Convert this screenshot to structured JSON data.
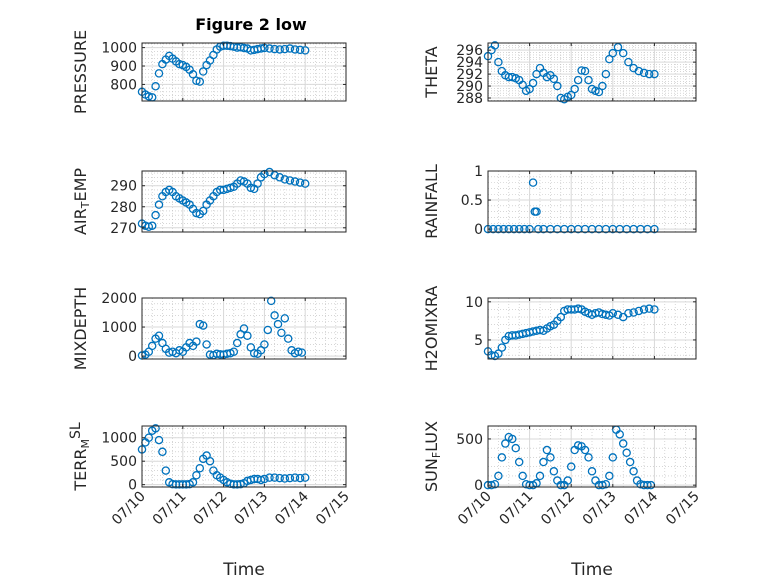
{
  "figure": {
    "title": "Figure 2 low",
    "marker_color": "#0072BD",
    "grid_color": "#d9d9d9",
    "minor_grid_color": "#bdbdbd",
    "axis_color": "#262626"
  },
  "chart_data": [
    {
      "type": "scatter",
      "title": "Figure 2 low",
      "ylabel": "PRESSURE",
      "ylim": [
        710,
        1025
      ],
      "yticks": [
        "800",
        "900",
        "1000"
      ],
      "ytick_values": [
        800,
        900,
        1000
      ],
      "xticks": [],
      "xlim": [
        "07/10",
        "07/14"
      ],
      "grid": true,
      "x": [
        "07/10 00:00",
        "07/10 02:00",
        "07/10 04:00",
        "07/10 06:00",
        "07/10 08:00",
        "07/10 10:00",
        "07/10 12:00",
        "07/10 14:00",
        "07/10 16:00",
        "07/10 18:00",
        "07/10 20:00",
        "07/10 22:00",
        "07/11 00:00",
        "07/11 02:00",
        "07/11 04:00",
        "07/11 06:00",
        "07/11 08:00",
        "07/11 10:00",
        "07/11 12:00",
        "07/11 14:00",
        "07/11 16:00",
        "07/11 18:00",
        "07/11 20:00",
        "07/11 22:00",
        "07/12 00:00",
        "07/12 02:00",
        "07/12 04:00",
        "07/12 06:00",
        "07/12 08:00",
        "07/12 10:00",
        "07/12 12:00",
        "07/12 14:00",
        "07/12 16:00",
        "07/12 18:00",
        "07/12 20:00",
        "07/12 22:00",
        "07/13 00:00",
        "07/13 03:00",
        "07/13 06:00",
        "07/13 09:00",
        "07/13 12:00",
        "07/13 15:00",
        "07/13 18:00",
        "07/13 21:00",
        "07/14 00:00"
      ],
      "y": [
        760,
        745,
        735,
        730,
        790,
        860,
        910,
        935,
        955,
        940,
        925,
        910,
        905,
        895,
        880,
        855,
        820,
        815,
        870,
        905,
        930,
        960,
        990,
        1005,
        1010,
        1010,
        1008,
        1005,
        1000,
        1002,
        998,
        995,
        985,
        988,
        992,
        995,
        998,
        995,
        992,
        990,
        992,
        995,
        990,
        988,
        985
      ]
    },
    {
      "type": "scatter",
      "ylabel": "THETA",
      "ylim": [
        287.5,
        297.2
      ],
      "yticks": [
        "288",
        "290",
        "292",
        "294",
        "296"
      ],
      "ytick_values": [
        288,
        290,
        292,
        294,
        296
      ],
      "xticks": [],
      "xlim": [
        "07/10",
        "07/14"
      ],
      "grid": true,
      "x": [
        "07/10 00:00",
        "07/10 02:00",
        "07/10 04:00",
        "07/10 06:00",
        "07/10 08:00",
        "07/10 10:00",
        "07/10 12:00",
        "07/10 14:00",
        "07/10 16:00",
        "07/10 18:00",
        "07/10 20:00",
        "07/10 22:00",
        "07/11 00:00",
        "07/11 02:00",
        "07/11 04:00",
        "07/11 06:00",
        "07/11 08:00",
        "07/11 10:00",
        "07/11 12:00",
        "07/11 14:00",
        "07/11 16:00",
        "07/11 18:00",
        "07/11 20:00",
        "07/11 22:00",
        "07/12 00:00",
        "07/12 02:00",
        "07/12 04:00",
        "07/12 06:00",
        "07/12 08:00",
        "07/12 10:00",
        "07/12 12:00",
        "07/12 14:00",
        "07/12 16:00",
        "07/12 18:00",
        "07/12 20:00",
        "07/12 22:00",
        "07/13 00:00",
        "07/13 03:00",
        "07/13 06:00",
        "07/13 09:00",
        "07/13 12:00",
        "07/13 15:00",
        "07/13 18:00",
        "07/13 21:00",
        "07/14 00:00"
      ],
      "y": [
        295,
        296,
        296.8,
        294,
        292.5,
        291.8,
        291.5,
        291.5,
        291.3,
        291,
        290.2,
        289.2,
        289.5,
        290.5,
        292,
        293,
        292.2,
        291.5,
        291.8,
        291.2,
        290,
        288,
        287.8,
        288.2,
        288.5,
        289.5,
        291,
        292.6,
        292.5,
        291,
        289.5,
        289.2,
        289,
        290,
        292,
        294.5,
        295.5,
        296.5,
        295.5,
        294,
        293,
        292.5,
        292.2,
        292,
        292
      ]
    },
    {
      "type": "scatter",
      "ylabel": "AIR_TEMP",
      "ylim": [
        268,
        297
      ],
      "yticks": [
        "270",
        "280",
        "290"
      ],
      "ytick_values": [
        270,
        280,
        290
      ],
      "xticks": [],
      "xlim": [
        "07/10",
        "07/14"
      ],
      "grid": true,
      "x": [
        "07/10 00:00",
        "07/10 02:00",
        "07/10 04:00",
        "07/10 06:00",
        "07/10 08:00",
        "07/10 10:00",
        "07/10 12:00",
        "07/10 14:00",
        "07/10 16:00",
        "07/10 18:00",
        "07/10 20:00",
        "07/10 22:00",
        "07/11 00:00",
        "07/11 02:00",
        "07/11 04:00",
        "07/11 06:00",
        "07/11 08:00",
        "07/11 10:00",
        "07/11 12:00",
        "07/11 14:00",
        "07/11 16:00",
        "07/11 18:00",
        "07/11 20:00",
        "07/11 22:00",
        "07/12 00:00",
        "07/12 02:00",
        "07/12 04:00",
        "07/12 06:00",
        "07/12 08:00",
        "07/12 10:00",
        "07/12 12:00",
        "07/12 14:00",
        "07/12 16:00",
        "07/12 18:00",
        "07/12 20:00",
        "07/12 22:00",
        "07/13 00:00",
        "07/13 03:00",
        "07/13 06:00",
        "07/13 09:00",
        "07/13 12:00",
        "07/13 15:00",
        "07/13 18:00",
        "07/13 21:00",
        "07/14 00:00"
      ],
      "y": [
        272,
        271,
        270.5,
        271,
        276,
        281,
        285,
        287,
        288,
        287,
        285,
        284,
        283,
        282,
        281,
        279,
        277,
        276.5,
        278,
        281,
        283,
        285,
        287,
        288,
        288,
        288.5,
        289,
        289.5,
        291,
        292.5,
        292,
        291,
        289,
        288.5,
        291,
        294,
        295.5,
        296.5,
        295,
        294,
        293,
        292.5,
        292,
        291.5,
        291
      ]
    },
    {
      "type": "scatter",
      "ylabel": "RAINFALL",
      "ylim": [
        -0.05,
        1.0
      ],
      "yticks": [
        "0",
        "0.5",
        "1"
      ],
      "ytick_values": [
        0,
        0.5,
        1
      ],
      "xticks": [],
      "xlim": [
        "07/10",
        "07/14"
      ],
      "grid": true,
      "x": [
        "07/10 00:00",
        "07/10 03:00",
        "07/10 06:00",
        "07/10 09:00",
        "07/10 12:00",
        "07/10 15:00",
        "07/10 18:00",
        "07/10 21:00",
        "07/11 00:00",
        "07/11 02:00",
        "07/11 03:00",
        "07/11 04:00",
        "07/11 05:00",
        "07/11 08:00",
        "07/11 12:00",
        "07/11 16:00",
        "07/11 20:00",
        "07/12 00:00",
        "07/12 04:00",
        "07/12 08:00",
        "07/12 12:00",
        "07/12 16:00",
        "07/12 20:00",
        "07/13 00:00",
        "07/13 04:00",
        "07/13 08:00",
        "07/13 12:00",
        "07/13 16:00",
        "07/13 20:00",
        "07/14 00:00"
      ],
      "y": [
        0,
        0,
        0,
        0,
        0,
        0,
        0,
        0,
        0,
        0.8,
        0.3,
        0.3,
        0,
        0,
        0,
        0,
        0,
        0,
        0,
        0,
        0,
        0,
        0,
        0,
        0,
        0,
        0,
        0,
        0,
        0
      ]
    },
    {
      "type": "scatter",
      "ylabel": "MIXDEPTH",
      "ylim": [
        -100,
        2000
      ],
      "yticks": [
        "0",
        "1000",
        "2000"
      ],
      "ytick_values": [
        0,
        1000,
        2000
      ],
      "xticks": [],
      "xlim": [
        "07/10",
        "07/14"
      ],
      "grid": true,
      "x": [
        "07/10 00:00",
        "07/10 02:00",
        "07/10 04:00",
        "07/10 06:00",
        "07/10 08:00",
        "07/10 10:00",
        "07/10 12:00",
        "07/10 14:00",
        "07/10 16:00",
        "07/10 18:00",
        "07/10 20:00",
        "07/10 22:00",
        "07/11 00:00",
        "07/11 02:00",
        "07/11 04:00",
        "07/11 06:00",
        "07/11 08:00",
        "07/11 10:00",
        "07/11 12:00",
        "07/11 14:00",
        "07/11 16:00",
        "07/11 18:00",
        "07/11 20:00",
        "07/11 22:00",
        "07/12 00:00",
        "07/12 02:00",
        "07/12 04:00",
        "07/12 06:00",
        "07/12 08:00",
        "07/12 10:00",
        "07/12 12:00",
        "07/12 14:00",
        "07/12 16:00",
        "07/12 18:00",
        "07/12 20:00",
        "07/12 22:00",
        "07/13 00:00",
        "07/13 02:00",
        "07/13 04:00",
        "07/13 06:00",
        "07/13 08:00",
        "07/13 10:00",
        "07/13 12:00",
        "07/13 14:00",
        "07/13 16:00",
        "07/13 18:00",
        "07/13 20:00",
        "07/13 22:00"
      ],
      "y": [
        20,
        50,
        150,
        350,
        600,
        700,
        450,
        250,
        120,
        150,
        100,
        200,
        150,
        300,
        450,
        350,
        500,
        1100,
        1050,
        400,
        50,
        30,
        80,
        60,
        50,
        80,
        100,
        150,
        450,
        750,
        950,
        700,
        300,
        100,
        80,
        200,
        400,
        900,
        1900,
        1400,
        1100,
        800,
        1300,
        600,
        200,
        100,
        150,
        120
      ]
    },
    {
      "type": "scatter",
      "ylabel": "H2OMIXRA",
      "ylim": [
        2.5,
        10.5
      ],
      "yticks": [
        "5",
        "10"
      ],
      "ytick_values": [
        5,
        10
      ],
      "xticks": [],
      "xlim": [
        "07/10",
        "07/14"
      ],
      "grid": true,
      "x": [
        "07/10 00:00",
        "07/10 02:00",
        "07/10 04:00",
        "07/10 06:00",
        "07/10 08:00",
        "07/10 10:00",
        "07/10 12:00",
        "07/10 14:00",
        "07/10 16:00",
        "07/10 18:00",
        "07/10 20:00",
        "07/10 22:00",
        "07/11 00:00",
        "07/11 02:00",
        "07/11 04:00",
        "07/11 06:00",
        "07/11 08:00",
        "07/11 10:00",
        "07/11 12:00",
        "07/11 14:00",
        "07/11 16:00",
        "07/11 18:00",
        "07/11 20:00",
        "07/11 22:00",
        "07/12 00:00",
        "07/12 02:00",
        "07/12 04:00",
        "07/12 06:00",
        "07/12 08:00",
        "07/12 10:00",
        "07/12 12:00",
        "07/12 14:00",
        "07/12 16:00",
        "07/12 18:00",
        "07/12 20:00",
        "07/12 22:00",
        "07/13 00:00",
        "07/13 03:00",
        "07/13 06:00",
        "07/13 09:00",
        "07/13 12:00",
        "07/13 15:00",
        "07/13 18:00",
        "07/13 21:00",
        "07/14 00:00"
      ],
      "y": [
        3.5,
        3.0,
        2.9,
        3.2,
        4.0,
        5.0,
        5.5,
        5.6,
        5.6,
        5.7,
        5.8,
        5.9,
        6.0,
        6.1,
        6.2,
        6.3,
        6.2,
        6.5,
        6.8,
        7.0,
        7.5,
        8.0,
        8.8,
        9.0,
        9.0,
        9.0,
        9.1,
        9.0,
        8.7,
        8.5,
        8.3,
        8.5,
        8.6,
        8.4,
        8.3,
        8.2,
        8.5,
        8.3,
        8.0,
        8.5,
        8.6,
        8.8,
        9.0,
        9.1,
        9.0
      ]
    },
    {
      "type": "scatter",
      "ylabel": "TERR_MSL",
      "ylim": [
        -50,
        1250
      ],
      "yticks": [
        "0",
        "500",
        "1000"
      ],
      "ytick_values": [
        0,
        500,
        1000
      ],
      "xticks": [
        "07/10",
        "07/11",
        "07/12",
        "07/13",
        "07/14",
        "07/15"
      ],
      "xtick_values": [
        0,
        1,
        2,
        3,
        4,
        5
      ],
      "xlim": [
        "07/10",
        "07/15"
      ],
      "xlabel": "Time",
      "grid": true,
      "x": [
        "07/10 00:00",
        "07/10 02:00",
        "07/10 04:00",
        "07/10 06:00",
        "07/10 08:00",
        "07/10 10:00",
        "07/10 12:00",
        "07/10 14:00",
        "07/10 16:00",
        "07/10 18:00",
        "07/10 20:00",
        "07/10 22:00",
        "07/11 00:00",
        "07/11 02:00",
        "07/11 04:00",
        "07/11 06:00",
        "07/11 08:00",
        "07/11 10:00",
        "07/11 12:00",
        "07/11 14:00",
        "07/11 16:00",
        "07/11 18:00",
        "07/11 20:00",
        "07/11 22:00",
        "07/12 00:00",
        "07/12 02:00",
        "07/12 04:00",
        "07/12 06:00",
        "07/12 08:00",
        "07/12 10:00",
        "07/12 12:00",
        "07/12 14:00",
        "07/12 16:00",
        "07/12 18:00",
        "07/12 20:00",
        "07/12 22:00",
        "07/13 00:00",
        "07/13 03:00",
        "07/13 06:00",
        "07/13 09:00",
        "07/13 12:00",
        "07/13 15:00",
        "07/13 18:00",
        "07/13 21:00",
        "07/14 00:00"
      ],
      "y": [
        750,
        900,
        1000,
        1150,
        1200,
        950,
        700,
        300,
        50,
        10,
        5,
        5,
        5,
        5,
        10,
        50,
        200,
        350,
        550,
        620,
        500,
        300,
        200,
        150,
        100,
        50,
        20,
        5,
        5,
        10,
        30,
        80,
        100,
        120,
        120,
        100,
        120,
        150,
        150,
        140,
        130,
        140,
        150,
        140,
        150
      ]
    },
    {
      "type": "scatter",
      "ylabel": "SUN_FLUX",
      "ylim": [
        -20,
        640
      ],
      "yticks": [
        "0",
        "500"
      ],
      "ytick_values": [
        0,
        500
      ],
      "xticks": [
        "07/10",
        "07/11",
        "07/12",
        "07/13",
        "07/14",
        "07/15"
      ],
      "xtick_values": [
        0,
        1,
        2,
        3,
        4,
        5
      ],
      "xlim": [
        "07/10",
        "07/15"
      ],
      "xlabel": "Time",
      "grid": true,
      "x": [
        "07/10 00:00",
        "07/10 02:00",
        "07/10 04:00",
        "07/10 06:00",
        "07/10 08:00",
        "07/10 10:00",
        "07/10 12:00",
        "07/10 14:00",
        "07/10 16:00",
        "07/10 18:00",
        "07/10 20:00",
        "07/10 22:00",
        "07/11 00:00",
        "07/11 02:00",
        "07/11 04:00",
        "07/11 06:00",
        "07/11 08:00",
        "07/11 10:00",
        "07/11 12:00",
        "07/11 14:00",
        "07/11 16:00",
        "07/11 18:00",
        "07/11 20:00",
        "07/11 22:00",
        "07/12 00:00",
        "07/12 02:00",
        "07/12 04:00",
        "07/12 06:00",
        "07/12 08:00",
        "07/12 10:00",
        "07/12 12:00",
        "07/12 14:00",
        "07/12 16:00",
        "07/12 18:00",
        "07/12 20:00",
        "07/12 22:00",
        "07/13 00:00",
        "07/13 02:00",
        "07/13 04:00",
        "07/13 06:00",
        "07/13 08:00",
        "07/13 10:00",
        "07/13 12:00",
        "07/13 14:00",
        "07/13 16:00",
        "07/13 18:00",
        "07/13 20:00",
        "07/13 22:00"
      ],
      "y": [
        0,
        0,
        10,
        100,
        300,
        450,
        520,
        500,
        400,
        250,
        100,
        10,
        0,
        0,
        20,
        100,
        250,
        380,
        300,
        150,
        50,
        0,
        0,
        50,
        200,
        380,
        430,
        420,
        380,
        300,
        150,
        50,
        0,
        0,
        10,
        100,
        300,
        600,
        550,
        450,
        350,
        250,
        150,
        50,
        10,
        0,
        0,
        0
      ]
    }
  ],
  "ylabel_display": [
    {
      "main": "PRESSURE",
      "sub": "",
      "rest": "",
      "sup": ""
    },
    {
      "main": "THETA",
      "sub": "",
      "rest": "",
      "sup": ""
    },
    {
      "main": "AIR",
      "sub": "T",
      "rest": "EMP",
      "sup": ""
    },
    {
      "main": "RAINFALL",
      "sub": "",
      "rest": "",
      "sup": ""
    },
    {
      "main": "MIXDEPTH",
      "sub": "",
      "rest": "",
      "sup": ""
    },
    {
      "main": "H2OMIXRA",
      "sub": "",
      "rest": "",
      "sup": ""
    },
    {
      "main": "TERR",
      "sub": "M",
      "rest": "",
      "sup": "SL"
    },
    {
      "main": "SUN",
      "sub": "F",
      "rest": "LUX",
      "sup": ""
    }
  ]
}
